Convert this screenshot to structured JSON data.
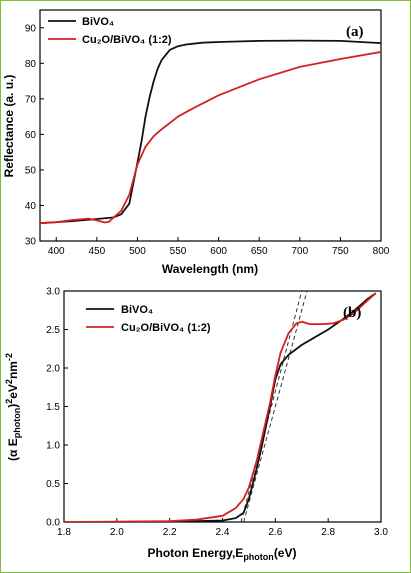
{
  "colors": {
    "bivo4": "#111111",
    "cu2o_bivo4": "#d42020",
    "tangent": "#333333",
    "frame": "#7fbf3a"
  },
  "chart_data": [
    {
      "type": "line",
      "panel": "(a)",
      "xlabel": "Wavelength (nm)",
      "ylabel": "Reflectance (a. u.)",
      "xlim": [
        380,
        800
      ],
      "ylim": [
        30,
        95
      ],
      "xticks": [
        400,
        450,
        500,
        550,
        600,
        650,
        700,
        750,
        800
      ],
      "yticks": [
        30,
        40,
        50,
        60,
        70,
        80,
        90
      ],
      "legend_position": "top-left",
      "series": [
        {
          "name": "BiVO₄",
          "color_key": "bivo4",
          "x": [
            380,
            420,
            450,
            470,
            480,
            490,
            500,
            505,
            510,
            515,
            520,
            525,
            530,
            540,
            550,
            560,
            580,
            600,
            650,
            700,
            750,
            800
          ],
          "y": [
            35.0,
            35.6,
            36.2,
            36.6,
            37.5,
            40.5,
            52.0,
            58.0,
            65.0,
            70.5,
            75.0,
            78.5,
            81.0,
            83.8,
            84.8,
            85.3,
            85.8,
            86.0,
            86.3,
            86.4,
            86.3,
            85.7
          ]
        },
        {
          "name": "Cu₂O/BiVO₄ (1:2)",
          "color_key": "cu2o_bivo4",
          "x": [
            380,
            400,
            420,
            440,
            450,
            460,
            465,
            470,
            480,
            490,
            500,
            510,
            520,
            530,
            540,
            550,
            570,
            600,
            650,
            700,
            750,
            800
          ],
          "y": [
            35.0,
            35.3,
            35.9,
            36.3,
            35.8,
            35.2,
            35.4,
            36.5,
            38.5,
            43.0,
            51.5,
            56.5,
            59.5,
            61.5,
            63.2,
            65.0,
            67.5,
            71.0,
            75.5,
            79.0,
            81.2,
            83.2
          ]
        }
      ]
    },
    {
      "type": "line",
      "panel": "(b)",
      "xlabel": "Photon Energy,E",
      "xlabel_sub": "photon",
      "xlabel_unit": "(eV)",
      "ylabel": "(α E",
      "ylabel_sub": "photon",
      "ylabel_rest": ")",
      "ylabel_sup": "2",
      "ylabel_mid": "eV",
      "ylabel_sup2": "2",
      "ylabel_end": "nm",
      "ylabel_sup3": "-2",
      "xlim": [
        1.8,
        3.0
      ],
      "ylim": [
        0.0,
        3.0
      ],
      "xticks": [
        1.8,
        2.0,
        2.2,
        2.4,
        2.6,
        2.8,
        3.0
      ],
      "yticks": [
        0.0,
        0.5,
        1.0,
        1.5,
        2.0,
        2.5,
        3.0
      ],
      "legend_position": "top-left",
      "series": [
        {
          "name": "BiVO₄",
          "color_key": "bivo4",
          "x": [
            1.8,
            2.0,
            2.2,
            2.3,
            2.4,
            2.45,
            2.48,
            2.5,
            2.53,
            2.55,
            2.58,
            2.6,
            2.62,
            2.65,
            2.7,
            2.75,
            2.8,
            2.85,
            2.9,
            2.95,
            2.98
          ],
          "y": [
            0.0,
            0.0,
            0.005,
            0.01,
            0.02,
            0.05,
            0.12,
            0.3,
            0.7,
            1.0,
            1.5,
            1.85,
            2.05,
            2.17,
            2.3,
            2.4,
            2.5,
            2.62,
            2.75,
            2.9,
            2.97
          ]
        },
        {
          "name": "Cu₂O/BiVO₄ (1:2)",
          "color_key": "cu2o_bivo4",
          "x": [
            1.8,
            2.0,
            2.2,
            2.3,
            2.4,
            2.45,
            2.48,
            2.5,
            2.53,
            2.55,
            2.58,
            2.6,
            2.62,
            2.65,
            2.68,
            2.7,
            2.73,
            2.78,
            2.82,
            2.86,
            2.9,
            2.95,
            2.98
          ],
          "y": [
            0.0,
            0.005,
            0.01,
            0.03,
            0.08,
            0.18,
            0.3,
            0.45,
            0.8,
            1.1,
            1.55,
            1.9,
            2.2,
            2.45,
            2.58,
            2.6,
            2.57,
            2.57,
            2.58,
            2.63,
            2.72,
            2.88,
            2.97
          ]
        }
      ],
      "tangent_lines": [
        {
          "series_name": "BiVO₄",
          "x": [
            2.48,
            2.72
          ],
          "y": [
            0.0,
            3.0
          ]
        },
        {
          "series_name": "Cu₂O/BiVO₄ (1:2)",
          "x": [
            2.47,
            2.7
          ],
          "y": [
            0.0,
            3.0
          ]
        }
      ]
    }
  ]
}
